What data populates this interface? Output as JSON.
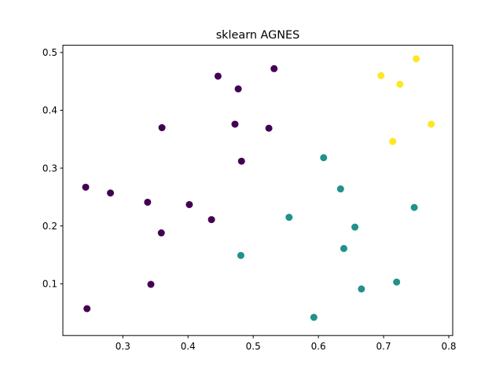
{
  "chart_data": {
    "type": "scatter",
    "title": "sklearn AGNES",
    "xlabel": "",
    "ylabel": "",
    "xlim": [
      0.208,
      0.806
    ],
    "ylim": [
      0.0105,
      0.5125
    ],
    "xticks": [
      0.3,
      0.4,
      0.5,
      0.6,
      0.7,
      0.8
    ],
    "yticks": [
      0.1,
      0.2,
      0.3,
      0.4,
      0.5
    ],
    "xtick_labels": [
      "0.3",
      "0.4",
      "0.5",
      "0.6",
      "0.7",
      "0.8"
    ],
    "ytick_labels": [
      "0.1",
      "0.2",
      "0.3",
      "0.4",
      "0.5"
    ],
    "grid": false,
    "series": [
      {
        "color": "#440154",
        "points": [
          [
            0.446,
            0.459
          ],
          [
            0.532,
            0.472
          ],
          [
            0.477,
            0.437
          ],
          [
            0.36,
            0.37
          ],
          [
            0.472,
            0.376
          ],
          [
            0.524,
            0.369
          ],
          [
            0.482,
            0.312
          ],
          [
            0.243,
            0.267
          ],
          [
            0.281,
            0.257
          ],
          [
            0.338,
            0.241
          ],
          [
            0.402,
            0.237
          ],
          [
            0.436,
            0.211
          ],
          [
            0.359,
            0.188
          ],
          [
            0.343,
            0.099
          ],
          [
            0.245,
            0.057
          ]
        ]
      },
      {
        "color": "#21918c",
        "points": [
          [
            0.608,
            0.318
          ],
          [
            0.634,
            0.264
          ],
          [
            0.555,
            0.215
          ],
          [
            0.747,
            0.232
          ],
          [
            0.656,
            0.198
          ],
          [
            0.639,
            0.161
          ],
          [
            0.481,
            0.149
          ],
          [
            0.72,
            0.103
          ],
          [
            0.666,
            0.091
          ],
          [
            0.593,
            0.042
          ]
        ]
      },
      {
        "color": "#fde725",
        "points": [
          [
            0.75,
            0.489
          ],
          [
            0.696,
            0.46
          ],
          [
            0.725,
            0.445
          ],
          [
            0.773,
            0.376
          ],
          [
            0.714,
            0.346
          ]
        ]
      }
    ]
  }
}
